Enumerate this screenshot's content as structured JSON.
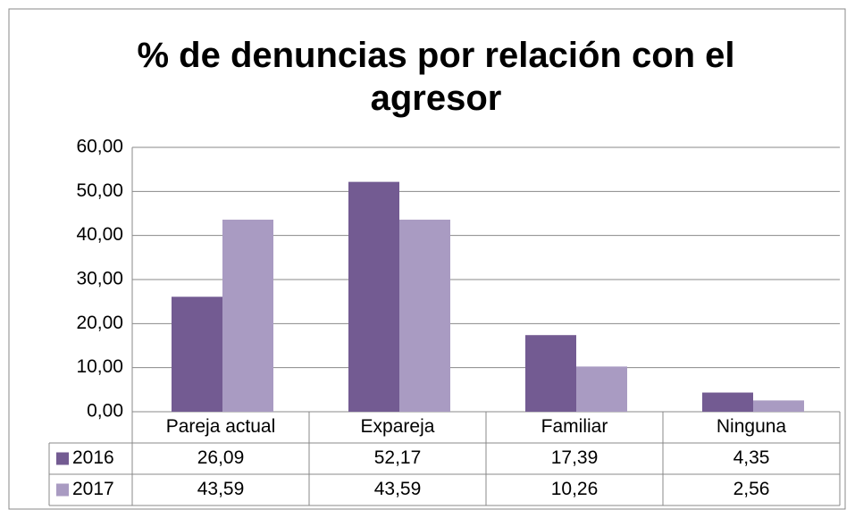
{
  "chart_data": {
    "type": "bar",
    "title": "% de denuncias por relación con el agresor",
    "categories": [
      "Pareja actual",
      "Expareja",
      "Familiar",
      "Ninguna"
    ],
    "series": [
      {
        "name": "2016",
        "color": "#735b92",
        "values": [
          26.09,
          52.17,
          17.39,
          4.35
        ],
        "value_labels": [
          "26,09",
          "52,17",
          "17,39",
          "4,35"
        ]
      },
      {
        "name": "2017",
        "color": "#a99bc2",
        "values": [
          43.59,
          43.59,
          10.26,
          2.56
        ],
        "value_labels": [
          "43,59",
          "43,59",
          "10,26",
          "2,56"
        ]
      }
    ],
    "ylim": [
      0,
      60
    ],
    "yticks": [
      {
        "value": 0,
        "label": "0,00"
      },
      {
        "value": 10,
        "label": "10,00"
      },
      {
        "value": 20,
        "label": "20,00"
      },
      {
        "value": 30,
        "label": "30,00"
      },
      {
        "value": 40,
        "label": "40,00"
      },
      {
        "value": 50,
        "label": "50,00"
      },
      {
        "value": 60,
        "label": "60,00"
      }
    ],
    "grid": true
  }
}
